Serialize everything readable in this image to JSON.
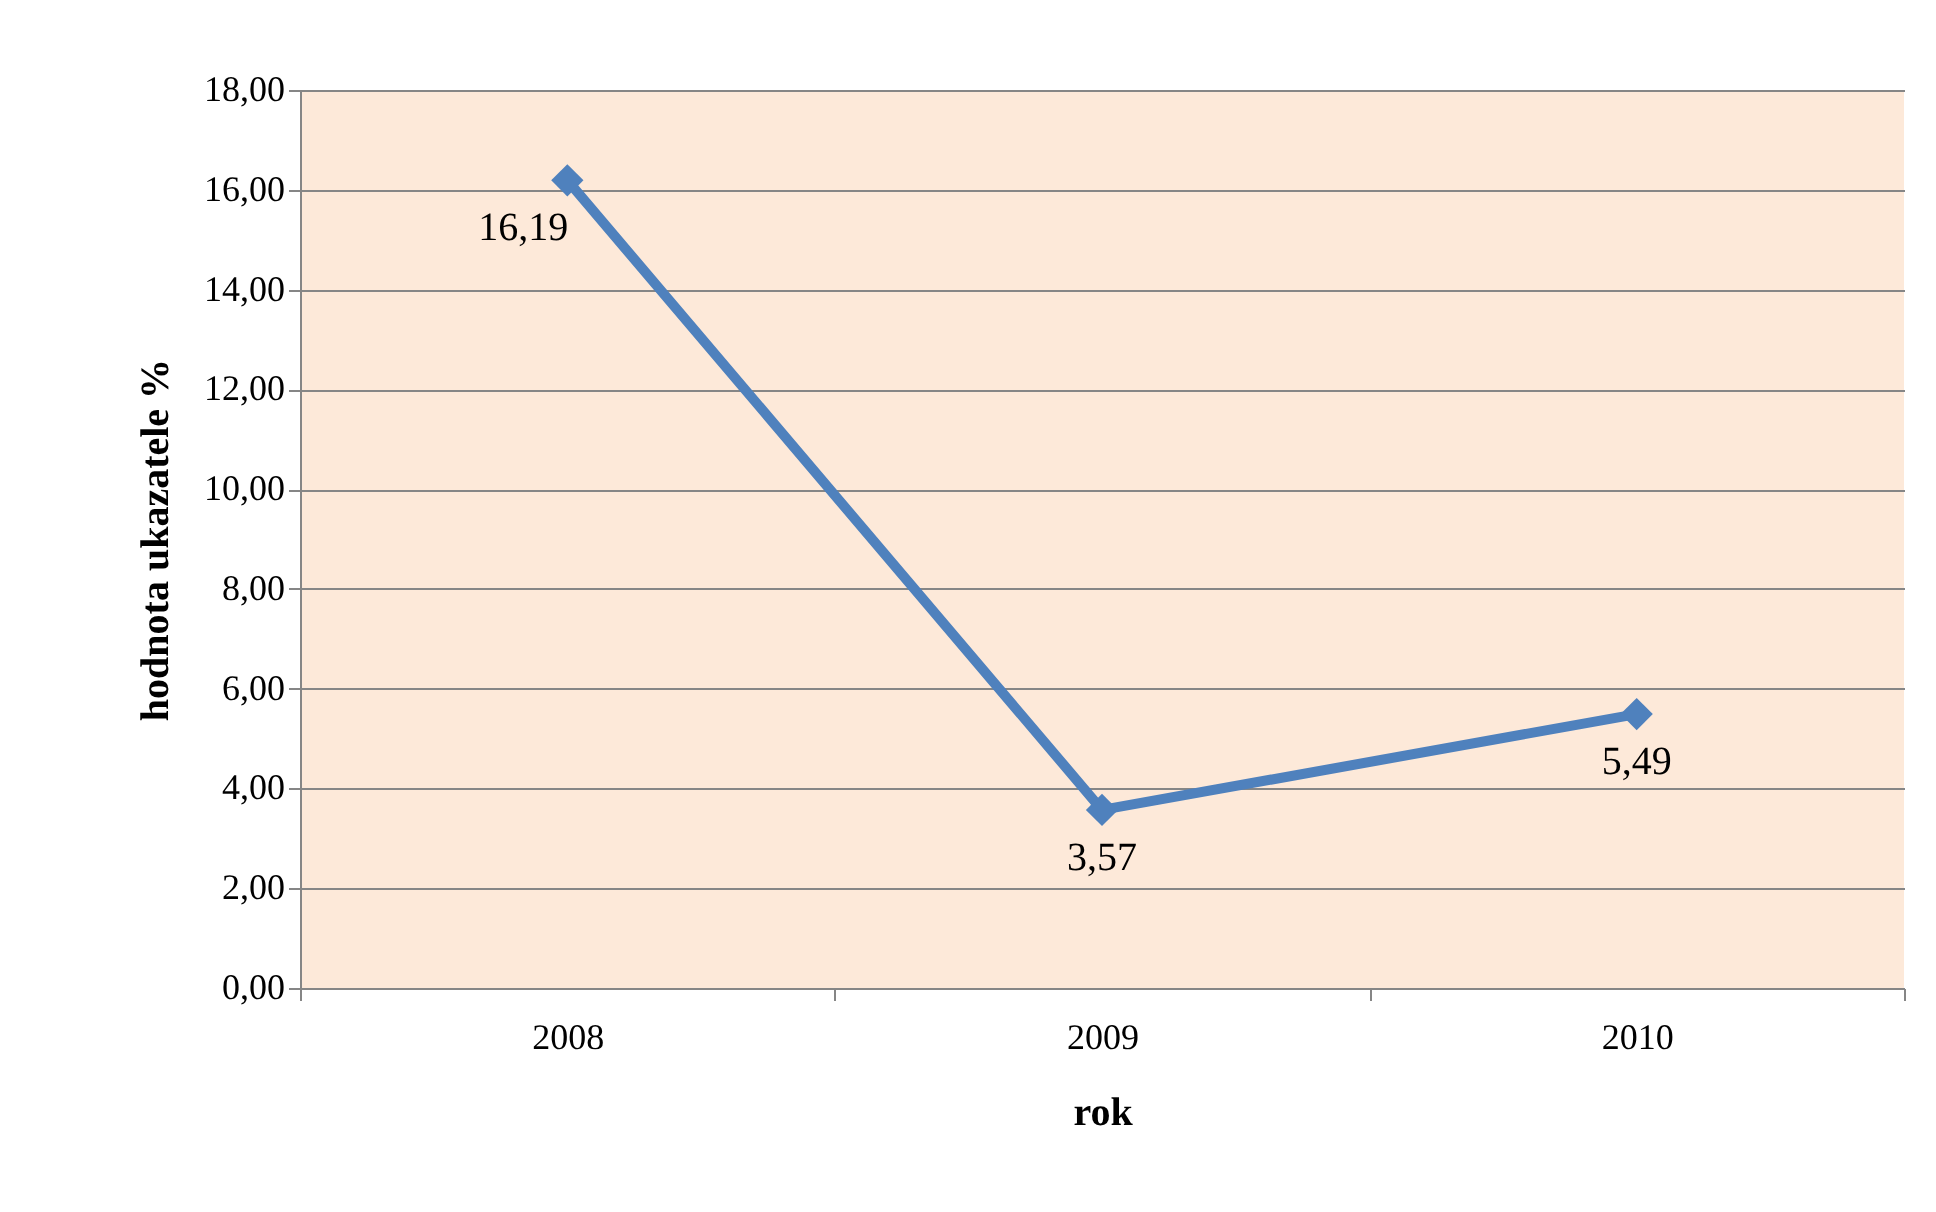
{
  "chart_data": {
    "type": "line",
    "xlabel": "rok",
    "ylabel": "hodnota ukazatele %",
    "categories": [
      "2008",
      "2009",
      "2010"
    ],
    "series": [
      {
        "color": "#4f81bd",
        "values": [
          16.19,
          3.57,
          5.49
        ]
      }
    ],
    "value_labels": [
      "16,19",
      "3,57",
      "5,49"
    ],
    "ylim": [
      0,
      18
    ],
    "yticks": [
      {
        "value": 0,
        "label": "0,00"
      },
      {
        "value": 2,
        "label": "2,00"
      },
      {
        "value": 4,
        "label": "4,00"
      },
      {
        "value": 6,
        "label": "6,00"
      },
      {
        "value": 8,
        "label": "8,00"
      },
      {
        "value": 10,
        "label": "10,00"
      },
      {
        "value": 12,
        "label": "12,00"
      },
      {
        "value": 14,
        "label": "14,00"
      },
      {
        "value": 16,
        "label": "16,00"
      },
      {
        "value": 18,
        "label": "18,00"
      }
    ],
    "grid": "y",
    "marker": "diamond",
    "line_style": "solid"
  }
}
